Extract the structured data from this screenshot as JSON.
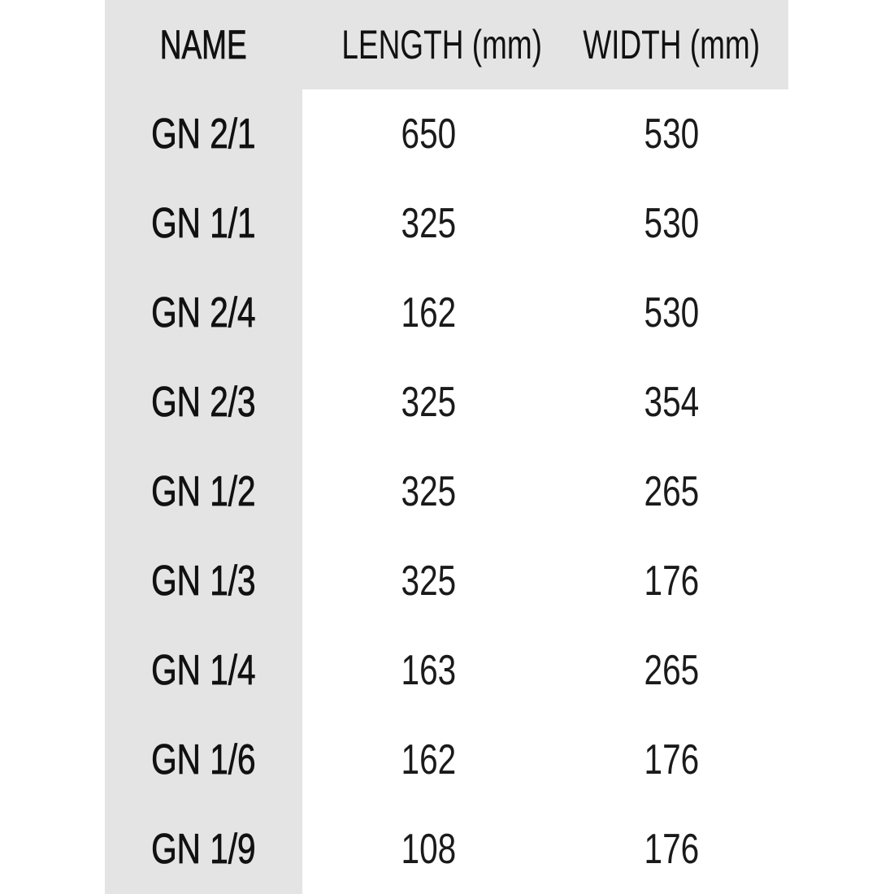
{
  "colors": {
    "shade": "#e5e4e4",
    "text": "#111111"
  },
  "table": {
    "headers": [
      "NAME",
      "LENGTH (mm)",
      "WIDTH (mm)"
    ],
    "rows": [
      [
        "GN 2/1",
        "650",
        "530"
      ],
      [
        "GN 1/1",
        "325",
        "530"
      ],
      [
        "GN 2/4",
        "162",
        "530"
      ],
      [
        "GN 2/3",
        "325",
        "354"
      ],
      [
        "GN 1/2",
        "325",
        "265"
      ],
      [
        "GN 1/3",
        "325",
        "176"
      ],
      [
        "GN 1/4",
        "163",
        "265"
      ],
      [
        "GN 1/6",
        "162",
        "176"
      ],
      [
        "GN 1/9",
        "108",
        "176"
      ]
    ]
  }
}
